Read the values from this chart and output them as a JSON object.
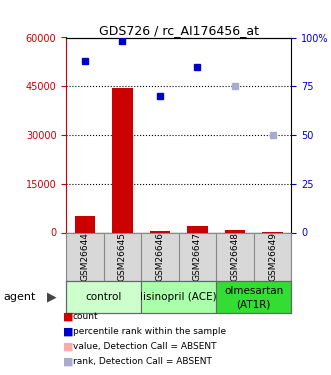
{
  "title": "GDS726 / rc_AI176456_at",
  "samples": [
    "GSM26644",
    "GSM26645",
    "GSM26646",
    "GSM26647",
    "GSM26648",
    "GSM26649"
  ],
  "counts": [
    5200,
    44500,
    400,
    2000,
    900,
    180
  ],
  "ranks": [
    88,
    98,
    70,
    85,
    75,
    50
  ],
  "count_absent": [
    false,
    false,
    false,
    false,
    false,
    false
  ],
  "rank_absent": [
    false,
    false,
    false,
    false,
    true,
    true
  ],
  "count_color": "#cc0000",
  "count_absent_color": "#ffaaaa",
  "rank_color": "#0000cc",
  "rank_absent_color": "#aaaacc",
  "bar_width": 0.55,
  "ylim_left": [
    0,
    60000
  ],
  "ylim_right": [
    0,
    100
  ],
  "yticks_left": [
    0,
    15000,
    30000,
    45000,
    60000
  ],
  "yticks_right": [
    0,
    25,
    50,
    75,
    100
  ],
  "ytick_labels_left": [
    "0",
    "15000",
    "30000",
    "45000",
    "60000"
  ],
  "ytick_labels_right": [
    "0",
    "25",
    "50",
    "75",
    "100%"
  ],
  "groups": [
    {
      "label": "control",
      "start": 0,
      "end": 1,
      "color": "#ccffcc"
    },
    {
      "label": "lisinopril (ACE)",
      "start": 2,
      "end": 3,
      "color": "#aaffaa"
    },
    {
      "label": "olmesartan\n(AT1R)",
      "start": 4,
      "end": 5,
      "color": "#33dd33"
    }
  ],
  "agent_label": "agent",
  "sample_bg_color": "#d8d8d8",
  "grid_color": "#000000",
  "plot_area_color": "#ffffff",
  "legend_items": [
    {
      "label": "count",
      "color": "#cc0000",
      "marker": "s"
    },
    {
      "label": "percentile rank within the sample",
      "color": "#0000cc",
      "marker": "s"
    },
    {
      "label": "value, Detection Call = ABSENT",
      "color": "#ffaaaa",
      "marker": "s"
    },
    {
      "label": "rank, Detection Call = ABSENT",
      "color": "#aaaacc",
      "marker": "s"
    }
  ]
}
